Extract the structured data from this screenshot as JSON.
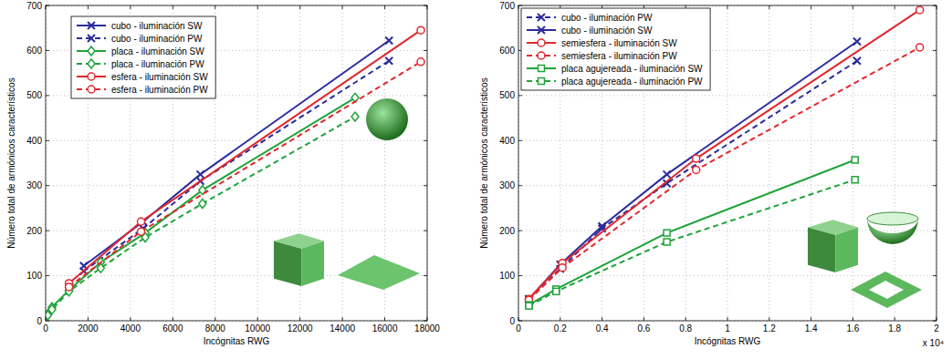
{
  "chart_data": [
    {
      "type": "line",
      "x_label": "Incógnitas RWG",
      "y_label": "Número total de armónicos característicos",
      "xlim": [
        0,
        18000
      ],
      "ylim": [
        0,
        700
      ],
      "xticks": [
        0,
        2000,
        4000,
        6000,
        8000,
        10000,
        12000,
        14000,
        16000,
        18000
      ],
      "yticks": [
        0,
        100,
        200,
        300,
        400,
        500,
        600,
        700
      ],
      "grid": true,
      "legend": "upper left",
      "series": [
        {
          "name": "cubo - iluminación SW",
          "color": "#2b2b9e",
          "line_style": "solid",
          "marker": "x",
          "x": [
            1800,
            4600,
            7300,
            16200
          ],
          "values": [
            122,
            220,
            325,
            622
          ]
        },
        {
          "name": "cubo - iluminación PW",
          "color": "#2b2b9e",
          "line_style": "dashed",
          "marker": "x",
          "x": [
            1800,
            4600,
            7300,
            16200
          ],
          "values": [
            110,
            205,
            310,
            577
          ]
        },
        {
          "name": "placa - iluminación SW",
          "color": "#1fa33a",
          "line_style": "solid",
          "marker": "diamond",
          "x": [
            100,
            300,
            1100,
            2600,
            4700,
            7400,
            14600
          ],
          "values": [
            15,
            30,
            68,
            130,
            195,
            290,
            495
          ]
        },
        {
          "name": "placa - iluminación PW",
          "color": "#1fa33a",
          "line_style": "dashed",
          "marker": "diamond",
          "x": [
            100,
            300,
            1100,
            2600,
            4700,
            7400,
            14600
          ],
          "values": [
            12,
            25,
            65,
            117,
            185,
            260,
            453
          ]
        },
        {
          "name": "esfera - iluminación SW",
          "color": "#e0282e",
          "line_style": "solid",
          "marker": "circle",
          "x": [
            1100,
            4500,
            17700
          ],
          "values": [
            83,
            220,
            645
          ]
        },
        {
          "name": "esfera - iluminación PW",
          "color": "#e0282e",
          "line_style": "dashed",
          "marker": "circle",
          "x": [
            1100,
            4500,
            17700
          ],
          "values": [
            75,
            198,
            575
          ]
        }
      ]
    },
    {
      "type": "line",
      "x_label": "Incógnitas RWG",
      "y_label": "Número total de armónicos característicos",
      "annotation": "x 10⁴",
      "xlim": [
        0,
        2
      ],
      "ylim": [
        0,
        700
      ],
      "xticks": [
        0,
        0.2,
        0.4,
        0.6,
        0.8,
        1,
        1.2,
        1.4,
        1.6,
        1.8,
        2
      ],
      "yticks": [
        0,
        100,
        200,
        300,
        400,
        500,
        600,
        700
      ],
      "grid": true,
      "legend": "upper left",
      "series": [
        {
          "name": "cubo - iluminación PW",
          "color": "#2b2b9e",
          "line_style": "dashed",
          "marker": "x",
          "x": [
            0.05,
            0.2,
            0.4,
            0.71,
            1.62
          ],
          "values": [
            48,
            115,
            205,
            305,
            577
          ]
        },
        {
          "name": "cubo - iluminación SW",
          "color": "#2b2b9e",
          "line_style": "solid",
          "marker": "x",
          "x": [
            0.05,
            0.2,
            0.4,
            0.71,
            1.62
          ],
          "values": [
            48,
            125,
            210,
            325,
            620
          ]
        },
        {
          "name": "semiesfera - iluminación SW",
          "color": "#e0282e",
          "line_style": "solid",
          "marker": "circle",
          "x": [
            0.05,
            0.21,
            0.85,
            1.92
          ],
          "values": [
            48,
            128,
            360,
            690
          ]
        },
        {
          "name": "semiesfera - iluminación PW",
          "color": "#e0282e",
          "line_style": "dashed",
          "marker": "circle",
          "x": [
            0.05,
            0.21,
            0.85,
            1.92
          ],
          "values": [
            46,
            118,
            335,
            607
          ]
        },
        {
          "name": "placa agujereada - iluminación SW",
          "color": "#1fa33a",
          "line_style": "solid",
          "marker": "square",
          "x": [
            0.05,
            0.18,
            0.71,
            1.61
          ],
          "values": [
            35,
            70,
            195,
            357
          ]
        },
        {
          "name": "placa agujereada - iluminación  PW",
          "color": "#1fa33a",
          "line_style": "dashed",
          "marker": "square",
          "x": [
            0.05,
            0.18,
            0.71,
            1.61
          ],
          "values": [
            33,
            65,
            175,
            313
          ]
        }
      ]
    }
  ]
}
